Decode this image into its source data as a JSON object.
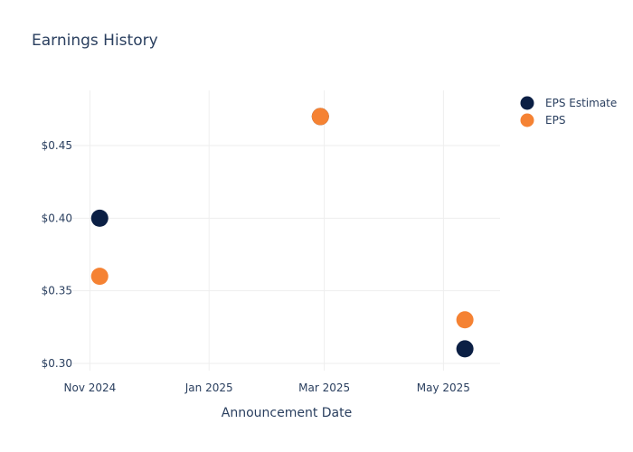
{
  "chart_data": {
    "type": "scatter",
    "title": "Earnings History",
    "xlabel": "Announcement Date",
    "ylabel": "",
    "x_ticks": [
      "Nov 2024",
      "Jan 2025",
      "Mar 2025",
      "May 2025"
    ],
    "x_tick_dates": [
      "2024-11-01",
      "2025-01-01",
      "2025-03-01",
      "2025-05-01"
    ],
    "xlim": [
      "2024-10-23",
      "2025-05-30"
    ],
    "y_ticks": [
      "$0.30",
      "$0.35",
      "$0.40",
      "$0.45"
    ],
    "y_tick_values": [
      0.3,
      0.35,
      0.4,
      0.45
    ],
    "ylim": [
      0.295,
      0.488
    ],
    "grid": true,
    "legend_position": "top-right",
    "series": [
      {
        "name": "EPS Estimate",
        "color": "#0b1f44",
        "points": [
          {
            "x": "2024-11-06",
            "y": 0.4
          },
          {
            "x": "2025-02-27",
            "y": 0.47
          },
          {
            "x": "2025-05-12",
            "y": 0.31
          }
        ]
      },
      {
        "name": "EPS",
        "color": "#f58233",
        "points": [
          {
            "x": "2024-11-06",
            "y": 0.36
          },
          {
            "x": "2025-02-27",
            "y": 0.47
          },
          {
            "x": "2025-05-12",
            "y": 0.33
          }
        ]
      }
    ]
  }
}
